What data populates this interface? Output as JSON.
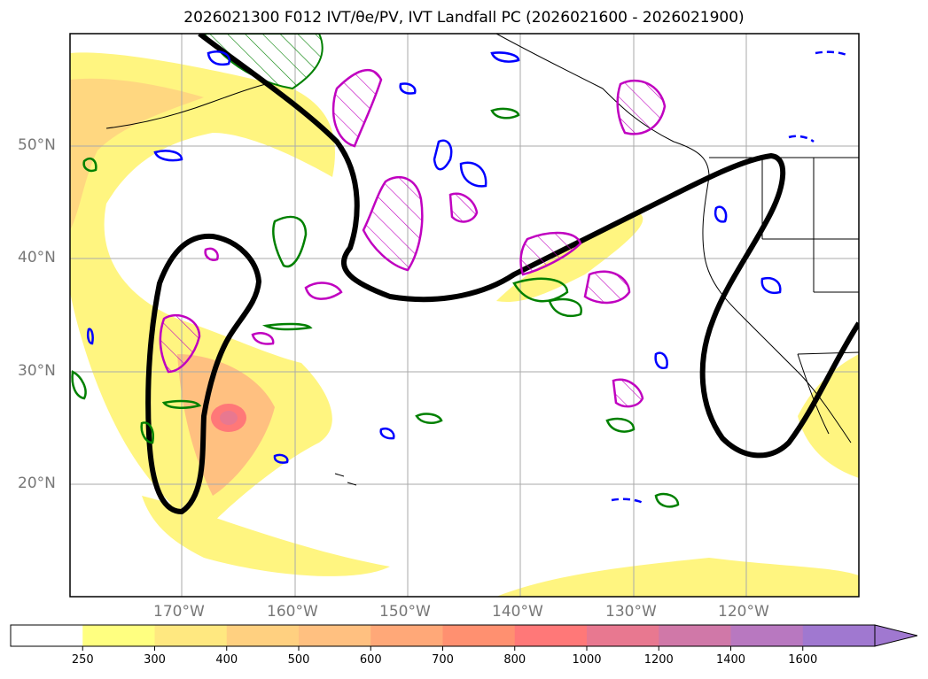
{
  "title": "2026021300 F012 IVT/θe/PV, IVT Landfall PC (2026021600 - 2026021900)",
  "map": {
    "lat_labels": [
      "50°N",
      "40°N",
      "30°N",
      "20°N"
    ],
    "lon_labels": [
      "170°W",
      "160°W",
      "150°W",
      "140°W",
      "130°W",
      "120°W"
    ]
  },
  "colorbar": {
    "ticks": [
      "250",
      "300",
      "400",
      "500",
      "600",
      "700",
      "800",
      "1000",
      "1200",
      "1400",
      "1600"
    ],
    "colors": [
      "#ffffff",
      "#ffff80",
      "#ffe880",
      "#ffd080",
      "#ffc080",
      "#ffa878",
      "#ff9070",
      "#ff7878",
      "#e87890",
      "#d078a8",
      "#b878c0",
      "#a078d0"
    ]
  },
  "colors": {
    "ivt_low": "#fff580",
    "ivt_mid": "#ffd080",
    "ivt_high": "#ff9070",
    "ivt_peak": "#ff7878",
    "pc_contour": "#000000",
    "theta_contour": "#008000",
    "pv_contour": "#0000ff",
    "magenta_contour": "#c000c0"
  }
}
